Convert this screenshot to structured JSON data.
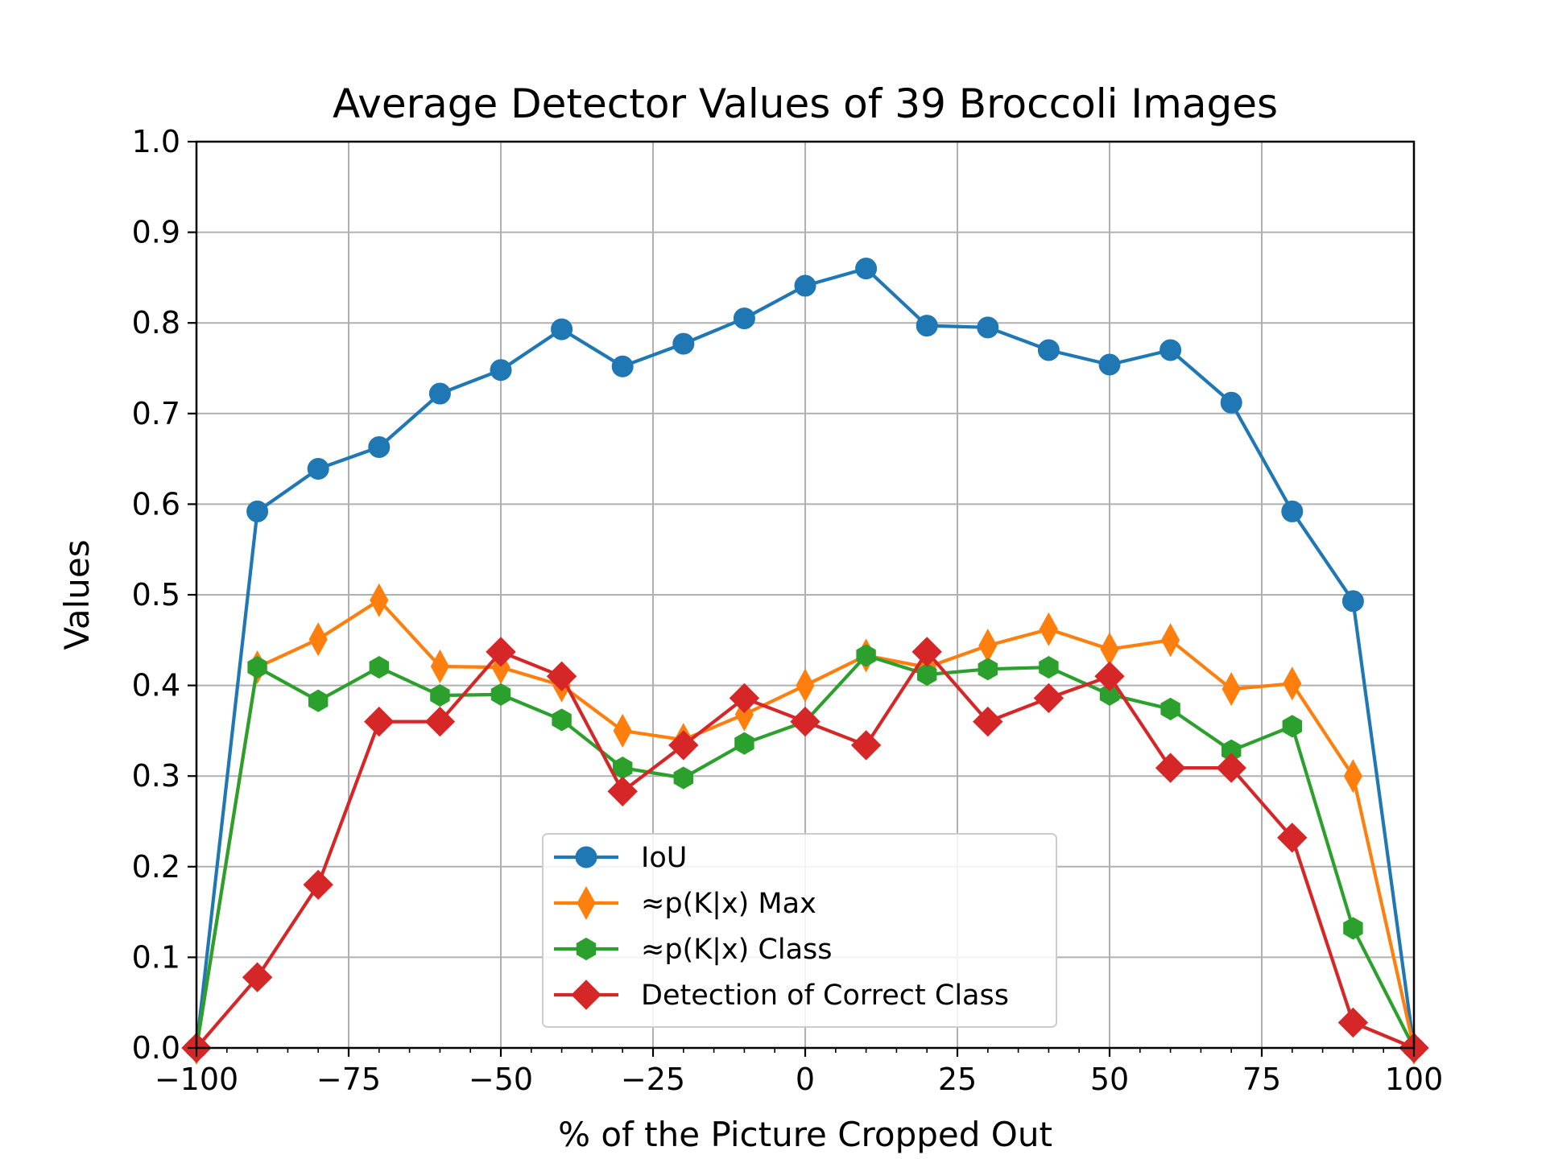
{
  "chart_data": {
    "type": "line",
    "title": "Average Detector Values of 39 Broccoli Images",
    "xlabel": "% of the Picture Cropped Out",
    "ylabel": "Values",
    "xlim": [
      -100,
      100
    ],
    "ylim": [
      0.0,
      1.0
    ],
    "xticks": [
      "−100",
      "−75",
      "−50",
      "−25",
      "0",
      "25",
      "50",
      "75",
      "100"
    ],
    "yticks": [
      "0.0",
      "0.1",
      "0.2",
      "0.3",
      "0.4",
      "0.5",
      "0.6",
      "0.7",
      "0.8",
      "0.9",
      "1.0"
    ],
    "grid": true,
    "legend_position": "lower center",
    "x": [
      -100,
      -90,
      -80,
      -70,
      -60,
      -50,
      -40,
      -30,
      -20,
      -10,
      0,
      10,
      20,
      30,
      40,
      50,
      60,
      70,
      80,
      90,
      100
    ],
    "series": [
      {
        "name": "IoU",
        "color": "#1f77b4",
        "marker": "circle",
        "values": [
          0.0,
          0.592,
          0.639,
          0.663,
          0.722,
          0.748,
          0.793,
          0.752,
          0.777,
          0.805,
          0.841,
          0.86,
          0.797,
          0.795,
          0.77,
          0.754,
          0.77,
          0.712,
          0.592,
          0.493,
          0.0
        ]
      },
      {
        "name": "≈p(K|x) Max",
        "color": "#ff7f0e",
        "marker": "thin_diamond",
        "values": [
          0.0,
          0.42,
          0.451,
          0.494,
          0.421,
          0.42,
          0.4,
          0.35,
          0.34,
          0.368,
          0.4,
          0.433,
          0.42,
          0.444,
          0.462,
          0.44,
          0.45,
          0.396,
          0.402,
          0.3,
          0.0
        ]
      },
      {
        "name": "≈p(K|x) Class",
        "color": "#2ca02c",
        "marker": "hexagon",
        "values": [
          0.0,
          0.42,
          0.383,
          0.42,
          0.389,
          0.39,
          0.362,
          0.309,
          0.298,
          0.336,
          0.36,
          0.433,
          0.412,
          0.418,
          0.42,
          0.39,
          0.374,
          0.328,
          0.355,
          0.132,
          0.0
        ]
      },
      {
        "name": "Detection of Correct Class",
        "color": "#d62728",
        "marker": "diamond",
        "values": [
          0.0,
          0.078,
          0.18,
          0.36,
          0.36,
          0.437,
          0.41,
          0.283,
          0.334,
          0.386,
          0.36,
          0.334,
          0.437,
          0.36,
          0.386,
          0.41,
          0.309,
          0.309,
          0.232,
          0.028,
          0.0
        ]
      }
    ]
  }
}
